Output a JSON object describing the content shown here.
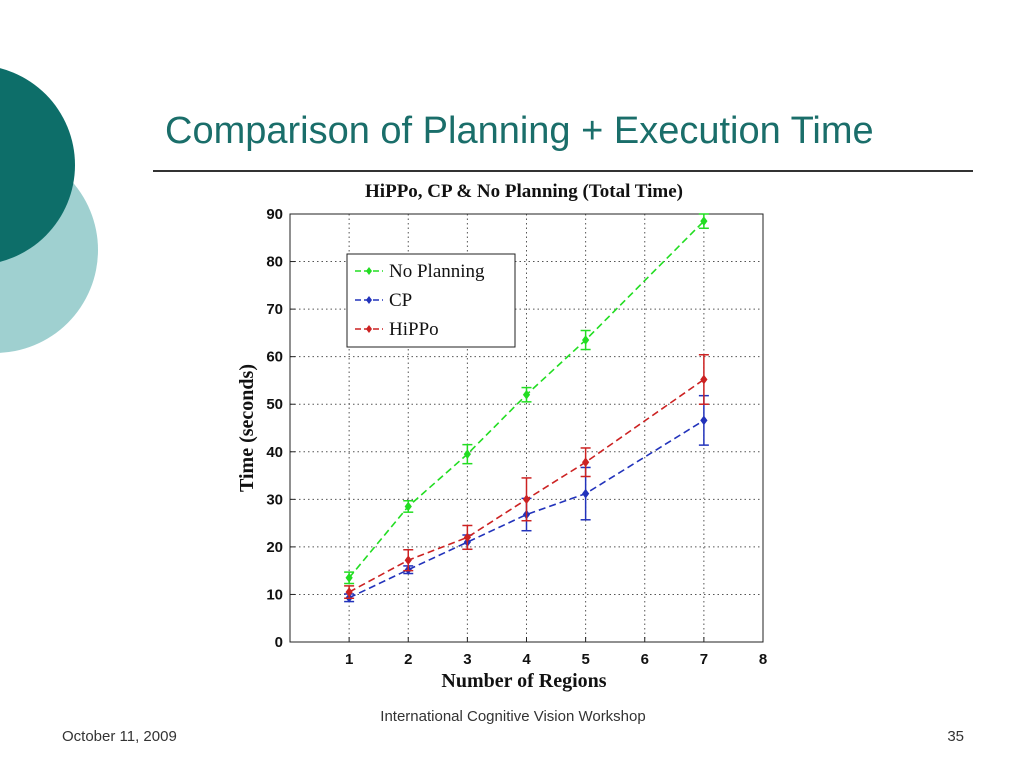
{
  "slide": {
    "title": "Comparison of Planning + Execution Time",
    "footer_date": "October 11, 2009",
    "footer_event": "International Cognitive Vision Workshop",
    "page_number": "35",
    "colors": {
      "title": "#1a6e6a",
      "deco_dark": "#0d6e69",
      "deco_light": "#9fd0d0"
    }
  },
  "chart_data": {
    "type": "line",
    "title": "HiPPo, CP & No Planning (Total Time)",
    "xlabel": "Number of Regions",
    "ylabel": "Time (seconds)",
    "xlim": [
      0,
      8
    ],
    "ylim": [
      0,
      90
    ],
    "xticks": [
      1,
      2,
      3,
      4,
      5,
      6,
      7,
      8
    ],
    "yticks": [
      0,
      10,
      20,
      30,
      40,
      50,
      60,
      70,
      80,
      90
    ],
    "grid": true,
    "legend_position": "top-left",
    "series": [
      {
        "name": "No Planning",
        "color": "#22dd22",
        "x": [
          1,
          2,
          3,
          4,
          5,
          7
        ],
        "y": [
          13.5,
          28.5,
          39.5,
          52,
          63.5,
          88.5
        ],
        "err": [
          1.2,
          1.2,
          2,
          1.5,
          2,
          1.5
        ]
      },
      {
        "name": "CP",
        "color": "#2233bb",
        "x": [
          1,
          2,
          3,
          4,
          5,
          7
        ],
        "y": [
          9.3,
          15.2,
          21,
          26.8,
          31.2,
          46.6
        ],
        "err": [
          0.8,
          0.8,
          1.5,
          3.4,
          5.5,
          5.2
        ]
      },
      {
        "name": "HiPPo",
        "color": "#cc2222",
        "x": [
          1,
          2,
          3,
          4,
          5,
          7
        ],
        "y": [
          10.5,
          17.2,
          22,
          30,
          37.8,
          55.2
        ],
        "err": [
          1.3,
          2.2,
          2.5,
          4.5,
          3,
          5.2
        ]
      }
    ]
  }
}
